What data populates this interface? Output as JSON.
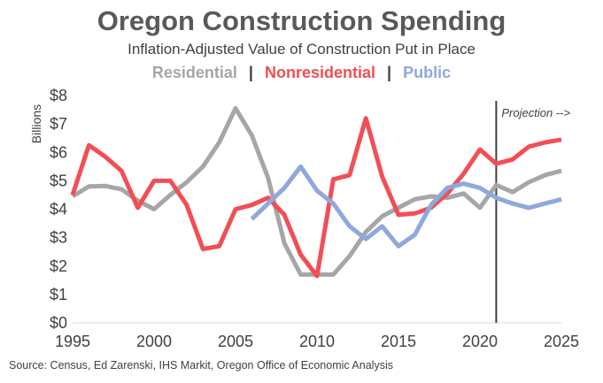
{
  "chart_data": {
    "type": "line",
    "title": "Oregon Construction Spending",
    "subtitle": "Inflation-Adjusted Value of Construction Put in Place",
    "ylabel": "Billions",
    "xlabel": "",
    "xlim": [
      1995,
      2025
    ],
    "ylim": [
      0,
      8
    ],
    "x_ticks": [
      "1995",
      "2000",
      "2005",
      "2010",
      "2015",
      "2020",
      "2025"
    ],
    "y_ticks": [
      "$0",
      "$1",
      "$2",
      "$3",
      "$4",
      "$5",
      "$6",
      "$7",
      "$8"
    ],
    "grid": false,
    "legend_position": "top-center",
    "legend_separator": "|",
    "annotation": {
      "text": "Projection -->",
      "x": 2021
    },
    "source": "Source: Census, Ed Zarenski, IHS Markit, Oregon Office of Economic Analysis",
    "series": [
      {
        "name": "Residential",
        "color": "#a6a6a6",
        "x": [
          1995,
          1996,
          1997,
          1998,
          1999,
          2000,
          2001,
          2002,
          2003,
          2004,
          2005,
          2006,
          2007,
          2008,
          2009,
          2010,
          2011,
          2012,
          2013,
          2014,
          2015,
          2016,
          2017,
          2018,
          2019,
          2020,
          2021,
          2022,
          2023,
          2024,
          2025
        ],
        "values": [
          4.45,
          4.8,
          4.82,
          4.7,
          4.3,
          4.0,
          4.5,
          4.95,
          5.5,
          6.35,
          7.55,
          6.6,
          5.1,
          2.8,
          1.7,
          1.7,
          1.7,
          2.35,
          3.2,
          3.75,
          4.05,
          4.35,
          4.45,
          4.4,
          4.55,
          4.05,
          4.85,
          4.6,
          4.95,
          5.2,
          5.35
        ]
      },
      {
        "name": "Nonresidential",
        "color": "#f24e55",
        "x": [
          1995,
          1996,
          1997,
          1998,
          1999,
          2000,
          2001,
          2002,
          2003,
          2004,
          2005,
          2006,
          2007,
          2008,
          2009,
          2010,
          2011,
          2012,
          2013,
          2014,
          2015,
          2016,
          2017,
          2018,
          2019,
          2020,
          2021,
          2022,
          2023,
          2024,
          2025
        ],
        "values": [
          4.5,
          6.25,
          5.85,
          5.35,
          4.05,
          5.0,
          5.0,
          4.15,
          2.6,
          2.7,
          4.0,
          4.15,
          4.4,
          3.8,
          2.4,
          1.65,
          5.05,
          5.2,
          7.2,
          5.15,
          3.8,
          3.85,
          4.05,
          4.55,
          5.25,
          6.1,
          5.6,
          5.75,
          6.2,
          6.35,
          6.45
        ]
      },
      {
        "name": "Public",
        "color": "#8ea9db",
        "x": [
          2006,
          2007,
          2008,
          2009,
          2010,
          2011,
          2012,
          2013,
          2014,
          2015,
          2016,
          2017,
          2018,
          2019,
          2020,
          2021,
          2022,
          2023,
          2024,
          2025
        ],
        "values": [
          3.65,
          4.2,
          4.75,
          5.5,
          4.65,
          4.2,
          3.4,
          2.95,
          3.4,
          2.7,
          3.1,
          4.15,
          4.75,
          4.9,
          4.75,
          4.4,
          4.2,
          4.05,
          4.2,
          4.35
        ]
      }
    ]
  }
}
